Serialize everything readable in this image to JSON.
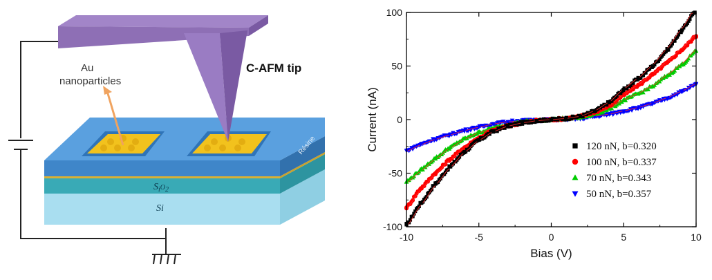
{
  "schematic": {
    "labels": {
      "au": "Au",
      "nanoparticles": "nanoparticles",
      "tip": "C-AFM tip",
      "resine": "Résine",
      "sio2": "SiO2",
      "si": "Si"
    },
    "colors": {
      "cantilever": "#8e6fb5",
      "substrate": "#a9def0",
      "oxide": "#39aab6",
      "resist": "#3f86c9",
      "gold": "#f2c21d",
      "arrow": "#f0a35f",
      "wire": "#222222"
    }
  },
  "chart_data": {
    "type": "scatter",
    "xlabel": "Bias (V)",
    "ylabel": "Current (nA)",
    "xlim": [
      -10,
      10
    ],
    "ylim": [
      -100,
      100
    ],
    "xticks": [
      -10,
      -5,
      0,
      5,
      10
    ],
    "yticks": [
      -100,
      -50,
      0,
      50,
      100
    ],
    "legend_position": "bottom-right",
    "grid": false,
    "series": [
      {
        "name": "120 nN, b=0.320",
        "color": "#000000",
        "marker": "square",
        "x": [
          -10,
          -9,
          -8,
          -7,
          -6,
          -5,
          -4,
          -3,
          -2,
          -1,
          0,
          1,
          2,
          3,
          4,
          5,
          6,
          7,
          8,
          9,
          10
        ],
        "y": [
          -98,
          -78,
          -60,
          -44,
          -30,
          -19,
          -11,
          -6,
          -3,
          -1,
          0,
          1,
          3,
          8,
          16,
          28,
          38,
          50,
          65,
          83,
          103
        ]
      },
      {
        "name": "100 nN, b=0.337",
        "color": "#ff0000",
        "marker": "circle",
        "x": [
          -10,
          -9,
          -8,
          -7,
          -6,
          -5,
          -4,
          -3,
          -2,
          -1,
          0,
          1,
          2,
          3,
          4,
          5,
          6,
          7,
          8,
          9,
          10
        ],
        "y": [
          -82,
          -64,
          -50,
          -37,
          -26,
          -17,
          -10,
          -6,
          -3,
          -1,
          0,
          1,
          3,
          7,
          13,
          23,
          32,
          42,
          53,
          65,
          78
        ]
      },
      {
        "name": "70 nN, b=0.343",
        "color": "#00cc00",
        "marker": "triangle-up",
        "x": [
          -10,
          -9,
          -8,
          -7,
          -6,
          -5,
          -4,
          -3,
          -2,
          -1,
          0,
          1,
          2,
          3,
          4,
          5,
          6,
          7,
          8,
          9,
          10
        ],
        "y": [
          -58,
          -47,
          -36,
          -26,
          -18,
          -12,
          -8,
          -5,
          -2,
          -1,
          0,
          1,
          2,
          5,
          10,
          18,
          24,
          31,
          41,
          51,
          64
        ]
      },
      {
        "name": "50 nN, b=0.357",
        "color": "#0000ff",
        "marker": "triangle-down",
        "x": [
          -10,
          -9,
          -8,
          -7,
          -6,
          -5,
          -4,
          -3,
          -2,
          -1,
          0,
          1,
          2,
          3,
          4,
          5,
          6,
          7,
          8,
          9,
          10
        ],
        "y": [
          -29,
          -23,
          -18,
          -14,
          -10,
          -7,
          -4,
          -2,
          -1,
          -0.5,
          0,
          0.5,
          1,
          3,
          5,
          8,
          11,
          15,
          20,
          26,
          33
        ]
      }
    ]
  }
}
